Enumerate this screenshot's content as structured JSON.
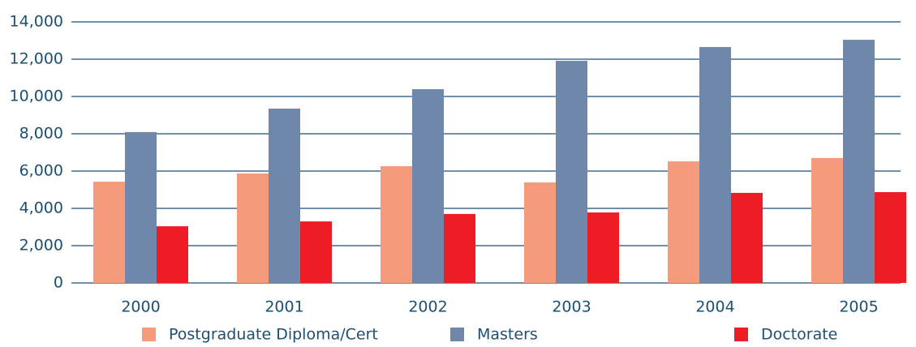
{
  "chart_data": {
    "type": "bar",
    "categories": [
      "2000",
      "2001",
      "2002",
      "2003",
      "2004",
      "2005"
    ],
    "series": [
      {
        "name": "Postgraduate Diploma/Cert",
        "color": "#f59b7c",
        "values": [
          5430,
          5870,
          6260,
          5390,
          6520,
          6700
        ]
      },
      {
        "name": "Masters",
        "color": "#6e87aa",
        "values": [
          8090,
          9350,
          10390,
          11910,
          12650,
          13040
        ]
      },
      {
        "name": "Doctorate",
        "color": "#ee1c25",
        "values": [
          3040,
          3300,
          3700,
          3780,
          4830,
          4870
        ]
      }
    ],
    "ylim": [
      0,
      14000
    ],
    "yticks": [
      0,
      {
        "value": 2000,
        "label": "2,000"
      },
      {
        "value": 4000,
        "label": "4,000"
      },
      {
        "value": 6000,
        "label": "6,000"
      },
      {
        "value": 8000,
        "label": "8,000"
      },
      {
        "value": 10000,
        "label": "10,000"
      },
      {
        "value": 12000,
        "label": "12,000"
      },
      {
        "value": 14000,
        "label": "14,000"
      }
    ],
    "grid": true,
    "legend": "bottom"
  }
}
